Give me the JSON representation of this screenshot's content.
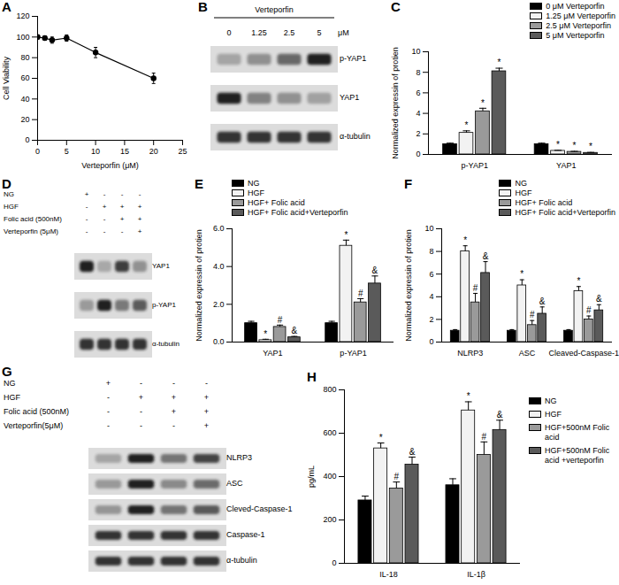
{
  "chart_data": [
    {
      "panel_label": "A",
      "type": "line",
      "x_label": "Verteporfin (μM)",
      "y_label": "Cell Viability",
      "x": [
        0,
        1.25,
        2.5,
        5,
        10,
        20
      ],
      "values": [
        100,
        99,
        97,
        99,
        85,
        60
      ],
      "errors": [
        2,
        2,
        3,
        3,
        5,
        5
      ],
      "color": "#000000",
      "marker": "circle",
      "xlim": [
        0,
        25
      ],
      "xticks": [
        0,
        5,
        10,
        15,
        20,
        25
      ],
      "ylim": [
        0,
        120
      ],
      "yticks": [
        0,
        20,
        40,
        60,
        80,
        100,
        120
      ]
    },
    {
      "panel_label": "C",
      "type": "bar",
      "y_label": "Normalized expressin of protien",
      "categories": [
        "p-YAP1",
        "YAP1"
      ],
      "series": [
        {
          "name": "0 μM Verteporfin",
          "color": "#000000",
          "values": [
            1,
            1
          ],
          "errors": [
            0.1,
            0.1
          ]
        },
        {
          "name": "1.25 μM Verteporfin",
          "color": "#f2f2f2",
          "values": [
            2.1,
            0.35
          ],
          "errors": [
            0.2,
            0.05
          ],
          "annotations": [
            "*",
            "*"
          ]
        },
        {
          "name": "2.5 μM Verteporfin",
          "color": "#9a9a9a",
          "values": [
            4.2,
            0.25
          ],
          "errors": [
            0.3,
            0.05
          ],
          "annotations": [
            "*",
            "*"
          ]
        },
        {
          "name": "5 μM Verteporfin",
          "color": "#5a5a5a",
          "values": [
            8.1,
            0.15
          ],
          "errors": [
            0.3,
            0.05
          ],
          "annotations": [
            "*",
            "*"
          ]
        }
      ],
      "ylim": [
        0,
        10
      ],
      "yticks": [
        0,
        2,
        4,
        6,
        8,
        10
      ],
      "legend": "top-right"
    },
    {
      "panel_label": "E",
      "type": "bar",
      "y_label": "Normalized expressin of protien",
      "categories": [
        "YAP1",
        "p-YAP1"
      ],
      "series": [
        {
          "name": "NG",
          "color": "#000000",
          "values": [
            1,
            1
          ],
          "errors": [
            0.1,
            0.1
          ]
        },
        {
          "name": "HGF",
          "color": "#f2f2f2",
          "values": [
            0.1,
            5.1
          ],
          "errors": [
            0.05,
            0.3
          ],
          "annotations": [
            "*",
            "*"
          ]
        },
        {
          "name": "HGF+ Folic acid",
          "color": "#9a9a9a",
          "values": [
            0.8,
            2.1
          ],
          "errors": [
            0.1,
            0.2
          ],
          "annotations": [
            "#",
            "#"
          ]
        },
        {
          "name": "HGF+ Folic acid+Verteporfin",
          "color": "#5a5a5a",
          "values": [
            0.25,
            3.1
          ],
          "errors": [
            0.05,
            0.4
          ],
          "annotations": [
            "&",
            "&"
          ]
        }
      ],
      "ylim": [
        0,
        6
      ],
      "yticks": [
        0,
        2,
        4,
        6
      ],
      "legend": "top-left"
    },
    {
      "panel_label": "F",
      "type": "bar",
      "y_label": "Normalized expressin of protien",
      "categories": [
        "NLRP3",
        "ASC",
        "Cleaved-Caspase-1"
      ],
      "series": [
        {
          "name": "NG",
          "color": "#000000",
          "values": [
            1,
            1,
            1
          ],
          "errors": [
            0.1,
            0.1,
            0.1
          ]
        },
        {
          "name": "HGF",
          "color": "#f2f2f2",
          "values": [
            8,
            5,
            4.5
          ],
          "errors": [
            0.5,
            0.5,
            0.4
          ],
          "annotations": [
            "*",
            "*",
            "*"
          ]
        },
        {
          "name": "HGF+ Folic acid",
          "color": "#9a9a9a",
          "values": [
            3.5,
            1.5,
            2
          ],
          "errors": [
            0.8,
            0.4,
            0.3
          ],
          "annotations": [
            "#",
            "#",
            "#"
          ]
        },
        {
          "name": "HGF+ Folic acid+Verteporfin",
          "color": "#5a5a5a",
          "values": [
            6.1,
            2.5,
            2.8
          ],
          "errors": [
            1,
            0.6,
            0.5
          ],
          "annotations": [
            "&",
            "&",
            "&"
          ]
        }
      ],
      "ylim": [
        0,
        10
      ],
      "yticks": [
        0,
        2,
        4,
        6,
        8,
        10
      ],
      "legend": "top-right"
    },
    {
      "panel_label": "H",
      "type": "bar",
      "y_label": "pg/mL",
      "categories": [
        "IL-18",
        "IL-1β"
      ],
      "series": [
        {
          "name": "NG",
          "color": "#000000",
          "values": [
            290,
            360
          ],
          "errors": [
            20,
            30
          ]
        },
        {
          "name": "HGF",
          "color": "#f2f2f2",
          "values": [
            530,
            705
          ],
          "errors": [
            25,
            40
          ],
          "annotations": [
            "*",
            "*"
          ]
        },
        {
          "name": "HGF+500nM Folic acid",
          "color": "#9a9a9a",
          "values": [
            345,
            500
          ],
          "errors": [
            30,
            60
          ],
          "annotations": [
            "#",
            "#"
          ]
        },
        {
          "name": "HGF+500nM Folic acid +verteporfin",
          "color": "#5a5a5a",
          "values": [
            455,
            615
          ],
          "errors": [
            35,
            45
          ],
          "annotations": [
            "&",
            "&"
          ]
        }
      ],
      "ylim": [
        0,
        800
      ],
      "yticks": [
        0,
        200,
        400,
        600,
        800
      ],
      "legend": "right"
    }
  ],
  "blots": [
    {
      "panel_label": "B",
      "treatment": "Verteporfin",
      "lanes": [
        "0",
        "1.25",
        "2.5",
        "5"
      ],
      "lane_unit": "μM",
      "rows": [
        "p-YAP1",
        "YAP1",
        "α-tubulin"
      ]
    },
    {
      "panel_label": "D",
      "conditions": [
        {
          "label": "NG",
          "signs": [
            "+",
            "-",
            "-",
            "-"
          ]
        },
        {
          "label": "HGF",
          "signs": [
            "-",
            "+",
            "+",
            "+"
          ]
        },
        {
          "label": "Folic acid (500nM)",
          "signs": [
            "-",
            "-",
            "+",
            "+"
          ]
        },
        {
          "label": "Verteporfin (5μM)",
          "signs": [
            "-",
            "-",
            "-",
            "+"
          ]
        }
      ],
      "rows": [
        "YAP1",
        "p-YAP1",
        "α-tubulin"
      ]
    },
    {
      "panel_label": "G",
      "conditions": [
        {
          "label": "NG",
          "signs": [
            "+",
            "-",
            "-",
            "-"
          ]
        },
        {
          "label": "HGF",
          "signs": [
            "-",
            "+",
            "+",
            "+"
          ]
        },
        {
          "label": "Folic acid (500nM)",
          "signs": [
            "-",
            "-",
            "+",
            "+"
          ]
        },
        {
          "label": "Verteporfin(5μM)",
          "signs": [
            "-",
            "-",
            "-",
            "+"
          ]
        }
      ],
      "rows": [
        "NLRP3",
        "ASC",
        "Cleved-Caspase-1",
        "Caspase-1",
        "α-tubulin"
      ]
    }
  ]
}
